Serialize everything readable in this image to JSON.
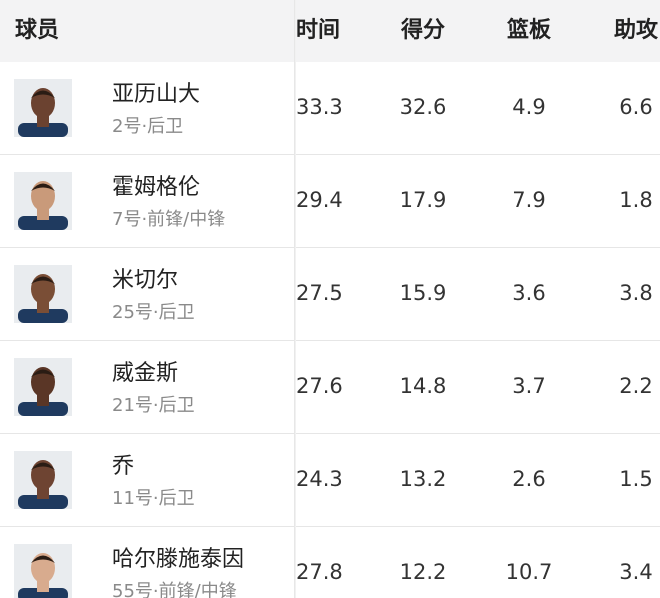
{
  "header": {
    "columns": [
      "球员",
      "时间",
      "得分",
      "篮板",
      "助攻"
    ]
  },
  "table": {
    "rows": [
      {
        "name": "亚历山大",
        "info": "2号·后卫",
        "stats": [
          33.3,
          32.6,
          4.9,
          6.6
        ]
      },
      {
        "name": "霍姆格伦",
        "info": "7号·前锋/中锋",
        "stats": [
          29.4,
          17.9,
          7.9,
          1.8
        ]
      },
      {
        "name": "米切尔",
        "info": "25号·后卫",
        "stats": [
          27.5,
          15.9,
          3.6,
          3.8
        ]
      },
      {
        "name": "威金斯",
        "info": "21号·后卫",
        "stats": [
          27.6,
          14.8,
          3.7,
          2.2
        ]
      },
      {
        "name": "乔",
        "info": "11号·后卫",
        "stats": [
          24.3,
          13.2,
          2.6,
          1.5
        ]
      },
      {
        "name": "哈尔滕施泰因",
        "info": "55号·前锋/中锋",
        "stats": [
          27.8,
          12.2,
          10.7,
          3.4
        ]
      }
    ]
  }
}
